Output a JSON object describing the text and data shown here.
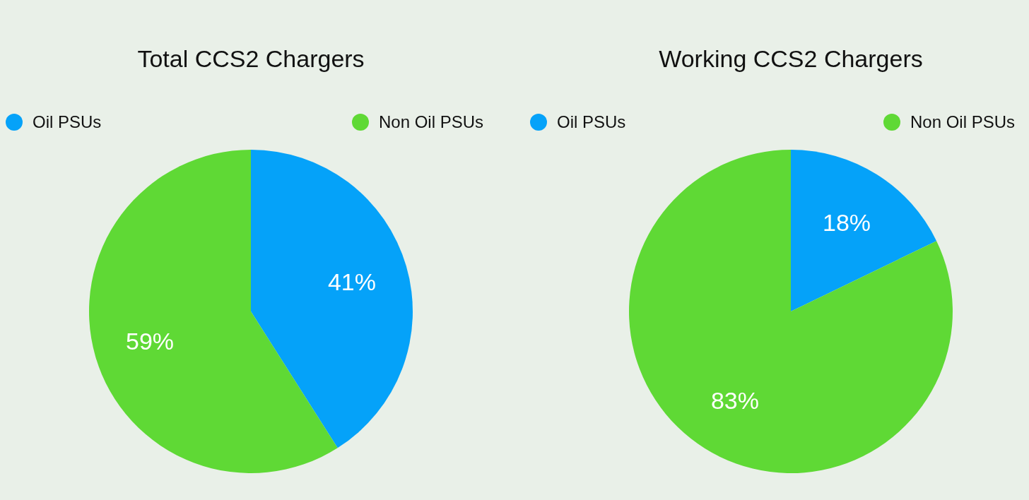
{
  "chart_data": [
    {
      "type": "pie",
      "title": "Total CCS2 Chargers",
      "categories": [
        "Oil PSUs",
        "Non Oil PSUs"
      ],
      "values": [
        41,
        59
      ],
      "colors": [
        "#05a2f9",
        "#5fd935"
      ],
      "value_labels": [
        "41%",
        "59%"
      ],
      "legend": "top"
    },
    {
      "type": "pie",
      "title": "Working CCS2 Chargers",
      "categories": [
        "Oil PSUs",
        "Non Oil PSUs"
      ],
      "values": [
        18,
        83
      ],
      "colors": [
        "#05a2f9",
        "#5fd935"
      ],
      "value_labels": [
        "18%",
        "83%"
      ],
      "legend": "top"
    }
  ]
}
